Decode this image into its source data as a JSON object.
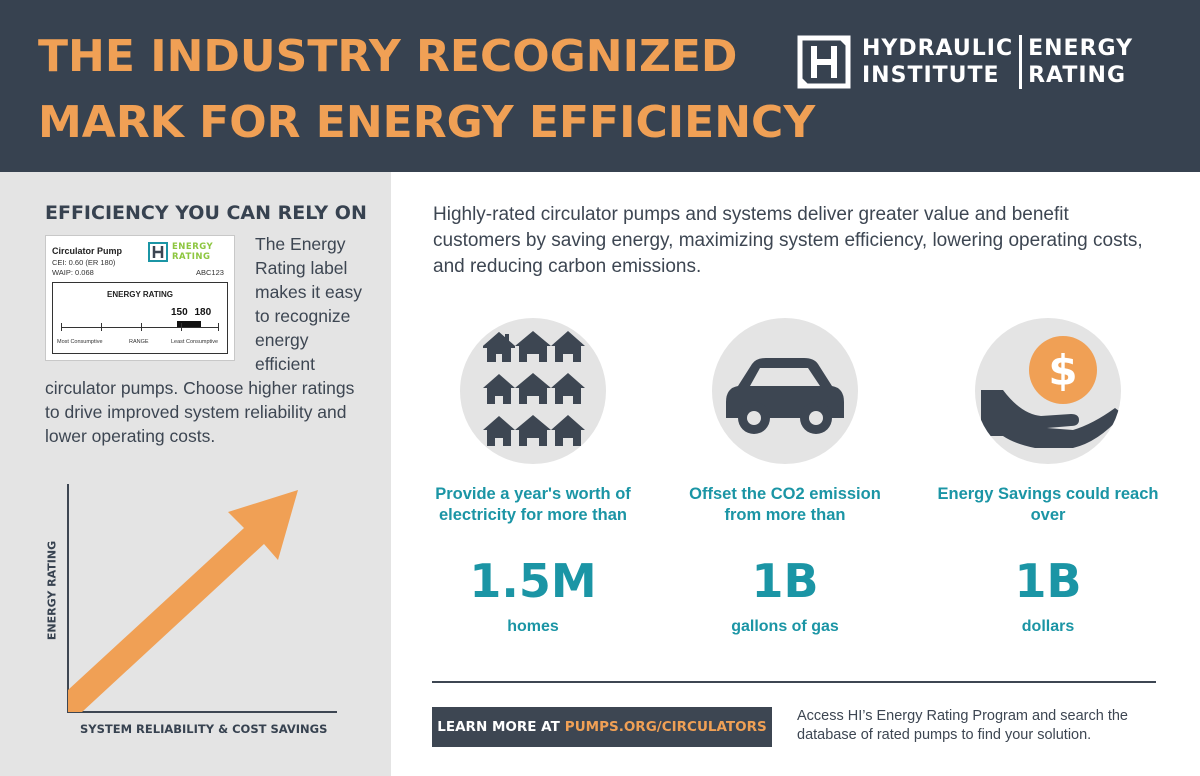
{
  "header": {
    "headline_line1": "THE INDUSTRY RECOGNIZED",
    "headline_line2": "MARK FOR ENERGY EFFICIENCY",
    "logo": {
      "word1": "HYDRAULIC",
      "word2": "INSTITUTE",
      "word3": "ENERGY",
      "word4": "RATING"
    }
  },
  "left": {
    "title": "EFFICIENCY YOU CAN RELY ON",
    "label_card": {
      "product": "Circulator Pump",
      "cei": "CEI: 0.60 (ER 180)",
      "waip": "WAIP: 0.068",
      "logo_line1": "ENERGY",
      "logo_line2": "RATING",
      "code": "ABC123",
      "scale_title": "ENERGY RATING",
      "value_low": "150",
      "value_high": "180",
      "least": "Most Consumptive",
      "range": "RANGE",
      "most": "Least Consumptive"
    },
    "paragraph_wrap": "The Energy Rating label makes it easy to recognize energy efficient",
    "paragraph_rest": "circulator pumps. Choose higher ratings to drive improved system reliability and lower operating costs.",
    "chart": {
      "ylabel": "ENERGY RATING",
      "xlabel": "SYSTEM RELIABILITY & COST SAVINGS"
    }
  },
  "intro": "Highly-rated circulator pumps and systems deliver greater value and benefit customers by saving energy, maximizing system efficiency, lowering operating costs, and reducing carbon emissions.",
  "stats": [
    {
      "icon": "houses-icon",
      "desc": "Provide a year's worth of electricity for more than",
      "value": "1.5M",
      "unit": "homes"
    },
    {
      "icon": "car-icon",
      "desc": "Offset the CO2 emission from more than",
      "value": "1B",
      "unit": "gallons of gas"
    },
    {
      "icon": "money-hand-icon",
      "desc": "Energy Savings could reach over",
      "value": "1B",
      "unit": "dollars"
    }
  ],
  "footer": {
    "cta_prefix": "LEARN MORE AT",
    "cta_url": "PUMPS.ORG/CIRCULATORS",
    "description": "Access HI’s Energy Rating Program and search the database of rated pumps to find your solution."
  },
  "colors": {
    "header_bg": "#374250",
    "accent_orange": "#f0a055",
    "teal": "#1b95a5",
    "panel_gray": "#e4e4e4",
    "energy_green": "#8dc63f"
  }
}
